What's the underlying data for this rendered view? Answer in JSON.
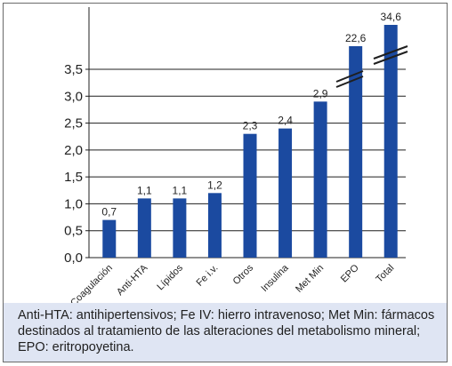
{
  "chart_data": {
    "type": "bar",
    "categories": [
      "Coagulación",
      "Anti-HTA",
      "Lípidos",
      "Fe i.v.",
      "Otros",
      "Insulina",
      "Met Min",
      "EPO",
      "Total"
    ],
    "values": [
      0.7,
      1.1,
      1.1,
      1.2,
      2.3,
      2.4,
      2.9,
      22.6,
      34.6
    ],
    "value_labels": [
      "0,7",
      "1,1",
      "1,1",
      "1,2",
      "2,3",
      "2,4",
      "2,9",
      "22,6",
      "34,6"
    ],
    "axis_break_categories": [
      "EPO",
      "Total"
    ],
    "yticks": [
      "0,0",
      "0,5",
      "1,0",
      "1,5",
      "2,0",
      "2,5",
      "3,0",
      "3,5"
    ],
    "ylim": [
      0,
      3.5
    ],
    "title": "",
    "xlabel": "",
    "ylabel": "",
    "grid": "horizontal",
    "bar_color": "#1b4aa0",
    "caption_bg": "#dfe5f3"
  },
  "caption": "Anti-HTA: antihipertensivos; Fe IV: hierro intravenoso; Met Min: fármacos destinados al tratamiento de las alteraciones del metabolismo mineral; EPO: eritropoyetina."
}
